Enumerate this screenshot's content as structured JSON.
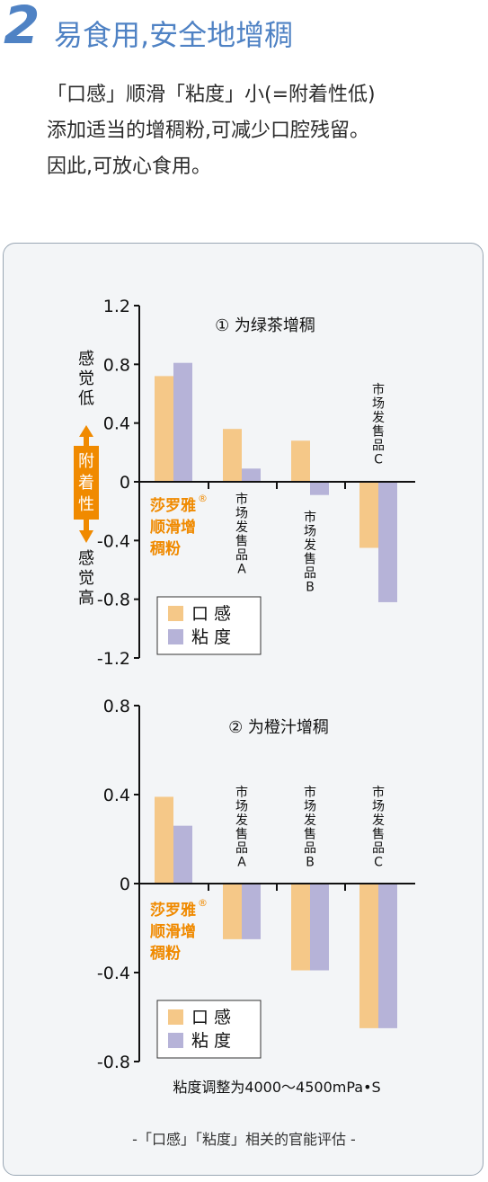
{
  "heading": {
    "number": "2",
    "title": "易食用,安全地增稠"
  },
  "description": [
    "「口感」顺滑「粘度」小(=附着性低)",
    "添加适当的增稠粉,可减少口腔残留。",
    "因此,可放心食用。"
  ],
  "side_labels": {
    "top": "感觉低",
    "middle": "附着性",
    "bottom": "感觉高"
  },
  "colors": {
    "mouthfeel": "#f5c888",
    "viscosity": "#b6b3d8",
    "accent": "#f08a00",
    "brand": "#4f82c4"
  },
  "brand_label": [
    "莎罗雅",
    "顺滑增",
    "稠粉"
  ],
  "brand_mark": "®",
  "chart_data": [
    {
      "type": "bar",
      "title": "① 为绿茶增稠",
      "categories": [
        "莎罗雅顺滑增稠粉",
        "市场发售品A",
        "市场发售品B",
        "市场发售品C"
      ],
      "category_labels": [
        [],
        [
          "市",
          "场",
          "发",
          "售",
          "品",
          "A"
        ],
        [
          "市",
          "场",
          "发",
          "售",
          "品",
          "B"
        ],
        [
          "市",
          "场",
          "发",
          "售",
          "品",
          "C"
        ]
      ],
      "series": [
        {
          "name": "口 感",
          "values": [
            0.72,
            0.36,
            0.28,
            -0.45
          ]
        },
        {
          "name": "粘 度",
          "values": [
            0.81,
            0.09,
            -0.09,
            -0.82
          ]
        }
      ],
      "ylim": [
        -1.2,
        1.2
      ],
      "yticks": [
        "1.2",
        "0.8",
        "0.4",
        "0",
        "-0.4",
        "-0.8",
        "-1.2"
      ],
      "legend_position": "bottom-left"
    },
    {
      "type": "bar",
      "title": "② 为橙汁增稠",
      "categories": [
        "莎罗雅顺滑增稠粉",
        "市场发售品A",
        "市场发售品B",
        "市场发售品C"
      ],
      "category_labels": [
        [],
        [
          "市",
          "场",
          "发",
          "售",
          "品",
          "A"
        ],
        [
          "市",
          "场",
          "发",
          "售",
          "品",
          "B"
        ],
        [
          "市",
          "场",
          "发",
          "售",
          "品",
          "C"
        ]
      ],
      "series": [
        {
          "name": "口 感",
          "values": [
            0.39,
            -0.25,
            -0.39,
            -0.65
          ]
        },
        {
          "name": "粘 度",
          "values": [
            0.26,
            -0.25,
            -0.39,
            -0.65
          ]
        }
      ],
      "ylim": [
        -0.8,
        0.8
      ],
      "yticks": [
        "0.8",
        "0.4",
        "0",
        "-0.4",
        "-0.8"
      ],
      "legend_position": "bottom-left"
    }
  ],
  "x_note": "粘度调整为4000～4500mPa•S",
  "footnote": "-「口感」「粘度」相关的官能评估 -"
}
